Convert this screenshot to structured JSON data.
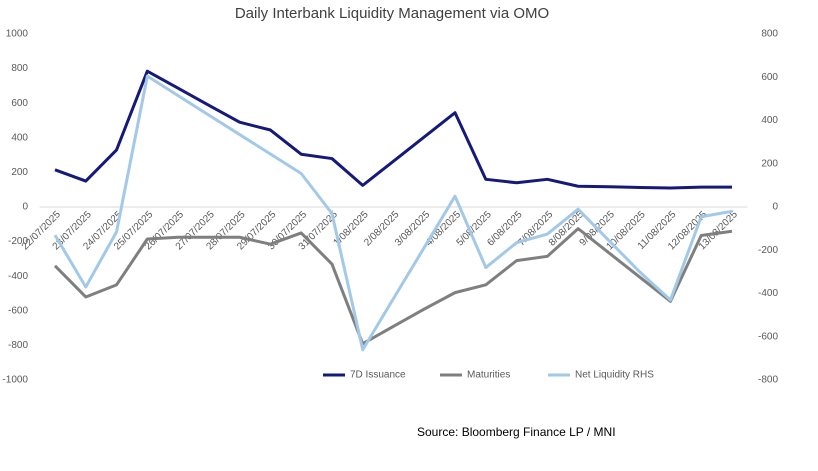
{
  "chart_data": {
    "type": "line",
    "title": "Daily Interbank Liquidity Management via OMO",
    "source": "Source: Bloomberg Finance LP / MNI",
    "categories": [
      "22/07/2025",
      "23/07/2025",
      "24/07/2025",
      "25/07/2025",
      "26/07/2025",
      "27/07/2025",
      "28/07/2025",
      "29/07/2025",
      "30/07/2025",
      "31/07/2025",
      "1/08/2025",
      "2/08/2025",
      "3/08/2025",
      "4/08/2025",
      "5/08/2025",
      "6/08/2025",
      "7/08/2025",
      "8/08/2025",
      "9/08/2025",
      "10/08/2025",
      "11/08/2025",
      "12/08/2025",
      "13/08/2025"
    ],
    "series": [
      {
        "name": "7D Issuance",
        "color": "#15197a",
        "axis": "y",
        "values": [
          215,
          150,
          330,
          785,
          687,
          588,
          490,
          445,
          305,
          280,
          125,
          265,
          405,
          545,
          160,
          140,
          160,
          120,
          117,
          113,
          110,
          115,
          115
        ]
      },
      {
        "name": "Maturities",
        "color": "#7f7f7f",
        "axis": "y",
        "values": [
          -340,
          -520,
          -450,
          -185,
          -175,
          -175,
          -175,
          -215,
          -150,
          -330,
          -790,
          -690,
          -590,
          -495,
          -450,
          -310,
          -285,
          -125,
          -265,
          -405,
          -545,
          -165,
          -140
        ]
      },
      {
        "name": "Net Liquidity RHS",
        "color": "#a3c9e8",
        "axis": "y2",
        "values": [
          -130,
          -370,
          -115,
          605,
          515,
          425,
          335,
          245,
          155,
          -30,
          -660,
          -423,
          -187,
          50,
          -280,
          -165,
          -125,
          -10,
          -155,
          -300,
          -430,
          -45,
          -20
        ]
      }
    ],
    "ylim": [
      -1000,
      1000
    ],
    "yticks": [
      -1000,
      -800,
      -600,
      -400,
      -200,
      0,
      200,
      400,
      600,
      800,
      1000
    ],
    "y2lim": [
      -800,
      800
    ],
    "y2ticks": [
      -800,
      -600,
      -400,
      -200,
      0,
      200,
      400,
      600,
      800
    ],
    "legend": "bottom"
  }
}
